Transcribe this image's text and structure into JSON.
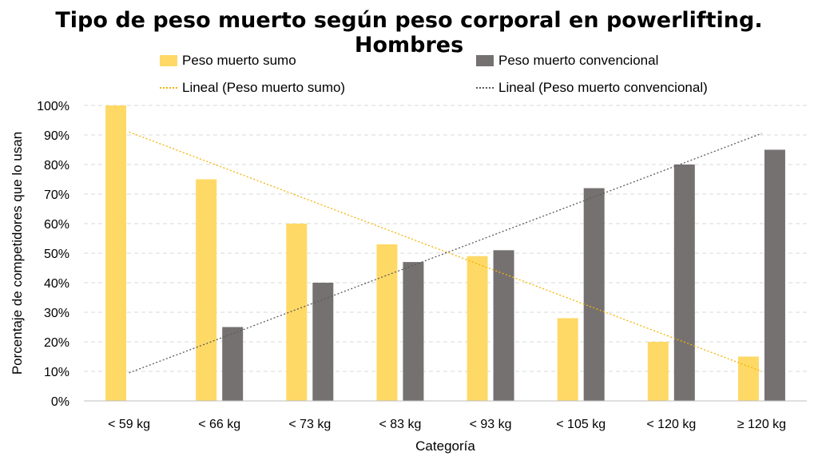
{
  "chart_data": {
    "type": "bar",
    "title": "Tipo de peso muerto según peso corporal en powerlifting. Hombres",
    "xlabel": "Categoría",
    "ylabel": "Porcentaje de competidores que lo usan",
    "categories": [
      "< 59 kg",
      "< 66 kg",
      "< 73 kg",
      "< 83 kg",
      "< 93 kg",
      "< 105 kg",
      "< 120 kg",
      "≥ 120 kg"
    ],
    "ylim": [
      0,
      100
    ],
    "yticks": [
      "0%",
      "10%",
      "20%",
      "30%",
      "40%",
      "50%",
      "60%",
      "70%",
      "80%",
      "90%",
      "100%"
    ],
    "grid": true,
    "legend_position": "top",
    "series": [
      {
        "name": "Peso muerto sumo",
        "color": "#FFD966",
        "values": [
          100,
          75,
          60,
          53,
          49,
          28,
          20,
          15
        ]
      },
      {
        "name": "Peso muerto convencional",
        "color": "#767171",
        "values": [
          0,
          25,
          40,
          47,
          51,
          72,
          80,
          85
        ]
      }
    ],
    "trendlines": [
      {
        "name": "Lineal (Peso muerto sumo)",
        "color": "#F4B400",
        "start": 91,
        "end": 10
      },
      {
        "name": "Lineal (Peso muerto convencional)",
        "color": "#5a5a5a",
        "start": 9.5,
        "end": 90.5
      }
    ]
  }
}
